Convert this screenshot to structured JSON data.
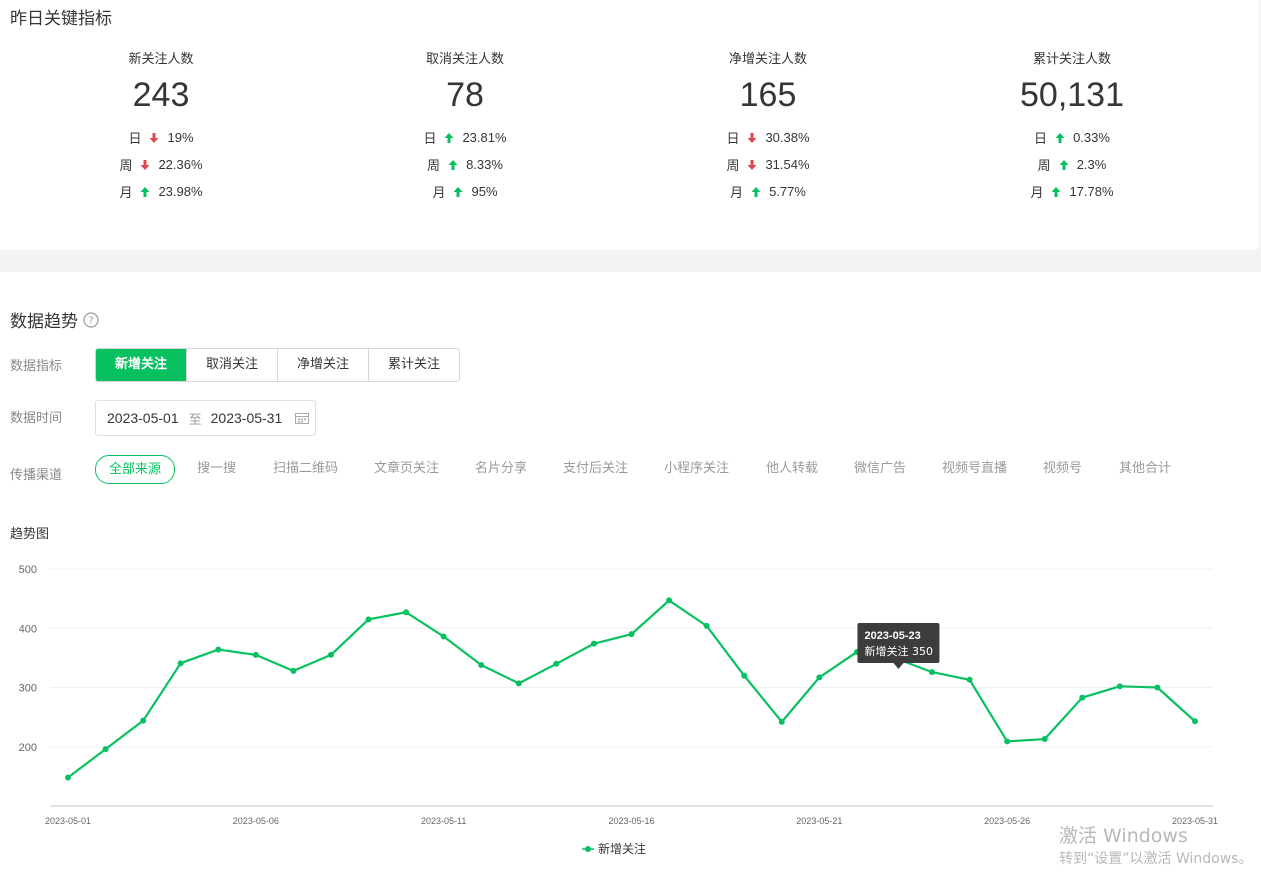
{
  "overview": {
    "title": "昨日关键指标",
    "kpis": [
      {
        "label": "新关注人数",
        "value": "243",
        "rows": [
          {
            "label": "日",
            "dir": "down",
            "pct": "19%"
          },
          {
            "label": "周",
            "dir": "down",
            "pct": "22.36%"
          },
          {
            "label": "月",
            "dir": "up",
            "pct": "23.98%"
          }
        ]
      },
      {
        "label": "取消关注人数",
        "value": "78",
        "rows": [
          {
            "label": "日",
            "dir": "up",
            "pct": "23.81%"
          },
          {
            "label": "周",
            "dir": "up",
            "pct": "8.33%"
          },
          {
            "label": "月",
            "dir": "up",
            "pct": "95%"
          }
        ]
      },
      {
        "label": "净增关注人数",
        "value": "165",
        "rows": [
          {
            "label": "日",
            "dir": "down",
            "pct": "30.38%"
          },
          {
            "label": "周",
            "dir": "down",
            "pct": "31.54%"
          },
          {
            "label": "月",
            "dir": "up",
            "pct": "5.77%"
          }
        ]
      },
      {
        "label": "累计关注人数",
        "value": "50,131",
        "rows": [
          {
            "label": "日",
            "dir": "up",
            "pct": "0.33%"
          },
          {
            "label": "周",
            "dir": "up",
            "pct": "2.3%"
          },
          {
            "label": "月",
            "dir": "up",
            "pct": "17.78%"
          }
        ]
      }
    ]
  },
  "trend": {
    "title": "数据趋势",
    "help_icon": "question-circle-icon",
    "metric_label": "数据指标",
    "metric_options": [
      "新增关注",
      "取消关注",
      "净增关注",
      "累计关注"
    ],
    "metric_selected": 0,
    "time_label": "数据时间",
    "date_start": "2023-05-01",
    "date_sep": "至",
    "date_end": "2023-05-31",
    "calendar_icon": "calendar-icon",
    "channel_label": "传播渠道",
    "channels": [
      "全部来源",
      "搜一搜",
      "扫描二维码",
      "文章页关注",
      "名片分享",
      "支付后关注",
      "小程序关注",
      "他人转载",
      "微信广告",
      "视频号直播",
      "视频号",
      "其他合计"
    ],
    "channel_selected": 0,
    "chart_title": "趋势图"
  },
  "colors": {
    "accent": "#07c160",
    "down": "#e0474d",
    "up": "#07c160",
    "tooltip_bg": "#3c3c3c"
  },
  "chart_data": {
    "type": "line",
    "x": [
      "2023-05-01",
      "2023-05-02",
      "2023-05-03",
      "2023-05-04",
      "2023-05-05",
      "2023-05-06",
      "2023-05-07",
      "2023-05-08",
      "2023-05-09",
      "2023-05-10",
      "2023-05-11",
      "2023-05-12",
      "2023-05-13",
      "2023-05-14",
      "2023-05-15",
      "2023-05-16",
      "2023-05-17",
      "2023-05-18",
      "2023-05-19",
      "2023-05-20",
      "2023-05-21",
      "2023-05-22",
      "2023-05-23",
      "2023-05-24",
      "2023-05-25",
      "2023-05-26",
      "2023-05-27",
      "2023-05-28",
      "2023-05-29",
      "2023-05-30",
      "2023-05-31"
    ],
    "x_tick_labels": [
      "2023-05-01",
      "2023-05-06",
      "2023-05-11",
      "2023-05-16",
      "2023-05-21",
      "2023-05-26",
      "2023-05-31"
    ],
    "series": [
      {
        "name": "新增关注",
        "color": "#07c160",
        "values": [
          148,
          196,
          244,
          341,
          364,
          355,
          328,
          355,
          415,
          427,
          386,
          338,
          307,
          340,
          374,
          390,
          447,
          404,
          320,
          242,
          317,
          360,
          350,
          326,
          313,
          209,
          213,
          283,
          302,
          300,
          243
        ]
      }
    ],
    "ylim": [
      100,
      500
    ],
    "y_ticks": [
      200,
      300,
      400,
      500
    ],
    "grid": true,
    "legend": "bottom-center",
    "tooltip": {
      "date": "2023-05-23",
      "label": "新增关注",
      "value": "350"
    }
  },
  "watermark": {
    "line1": "激活 Windows",
    "line2": "转到“设置”以激活 Windows。"
  }
}
